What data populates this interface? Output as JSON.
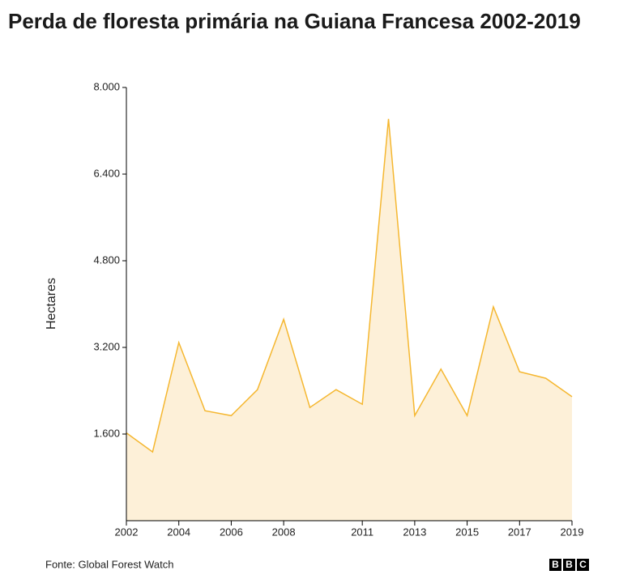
{
  "chart_data": {
    "type": "area",
    "title": "Perda de floresta primária na Guiana Francesa 2002-2019",
    "y_label": "Hectares",
    "source": "Fonte: Global Forest Watch",
    "logo": [
      "B",
      "B",
      "C"
    ],
    "x": [
      2002,
      2003,
      2004,
      2005,
      2006,
      2007,
      2008,
      2009,
      2010,
      2011,
      2012,
      2013,
      2014,
      2015,
      2016,
      2017,
      2018,
      2019
    ],
    "values": [
      1620,
      1270,
      3290,
      2030,
      1940,
      2420,
      3720,
      2090,
      2420,
      2150,
      7420,
      1940,
      2800,
      1940,
      3950,
      2750,
      2630,
      2290
    ],
    "xlim": [
      2002,
      2019
    ],
    "xticks": [
      2002,
      2004,
      2006,
      2008,
      2011,
      2013,
      2015,
      2017,
      2019
    ],
    "ylim": [
      0,
      8000
    ],
    "yticks": [
      {
        "value": 1600,
        "label": "1.600"
      },
      {
        "value": 3200,
        "label": "3.200"
      },
      {
        "value": 4800,
        "label": "4.800"
      },
      {
        "value": 6400,
        "label": "6.400"
      },
      {
        "value": 8000,
        "label": "8.000"
      }
    ],
    "color": "#f5b730",
    "fill_color": "#fdf0d8",
    "grid": false
  }
}
